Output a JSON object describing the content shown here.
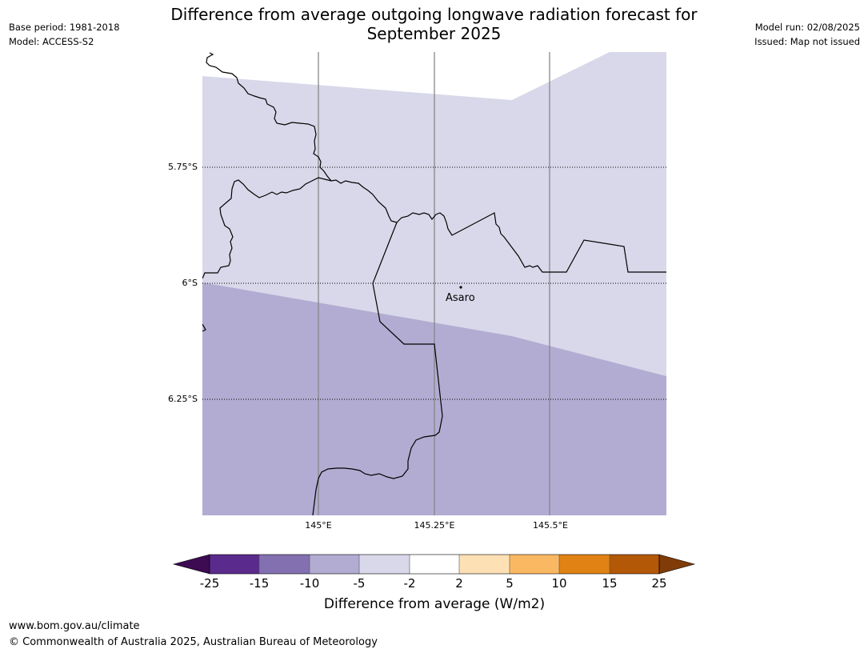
{
  "header": {
    "title_line1": "Difference from average outgoing longwave radiation forecast for",
    "title_line2": "September 2025",
    "base_period": "Base period: 1981-2018",
    "model": "Model: ACCESS-S2",
    "model_run": "Model run: 02/08/2025",
    "issued": "Issued: Map not issued"
  },
  "map": {
    "lat_labels": [
      "5.75°S",
      "6°S",
      "6.25°S"
    ],
    "lon_labels": [
      "145°E",
      "145.25°E",
      "145.5°E"
    ],
    "place": "Asaro",
    "colors": {
      "light_band": "#d8d8ea",
      "dark_band": "#b2acd2",
      "border": "#000000",
      "meridian": "#808080"
    }
  },
  "colorbar": {
    "ticks": [
      "-25",
      "-15",
      "-10",
      "-5",
      "-2",
      "2",
      "5",
      "10",
      "15",
      "25"
    ],
    "colors": [
      "#3c0b52",
      "#5a2a8c",
      "#8270b0",
      "#b2acd2",
      "#d8d8ea",
      "#ffffff",
      "#fde0b4",
      "#fbb862",
      "#e08214",
      "#b35806",
      "#7f3b08"
    ],
    "label": "Difference from average (W/m2)"
  },
  "footer": {
    "url": "www.bom.gov.au/climate",
    "copyright": "© Commonwealth of Australia 2025, Australian Bureau of Meteorology"
  }
}
